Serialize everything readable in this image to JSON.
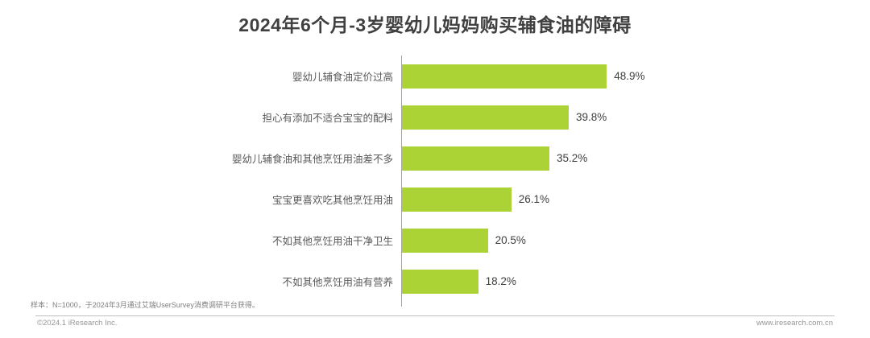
{
  "title": "2024年6个月-3岁婴幼儿妈妈购买辅食油的障碍",
  "chart_data": {
    "type": "bar",
    "orientation": "horizontal",
    "title": "2024年6个月-3岁婴幼儿妈妈购买辅食油的障碍",
    "categories": [
      "婴幼儿辅食油定价过高",
      "担心有添加不适合宝宝的配料",
      "婴幼儿辅食油和其他烹饪用油差不多",
      "宝宝更喜欢吃其他烹饪用油",
      "不如其他烹饪用油干净卫生",
      "不如其他烹饪用油有营养"
    ],
    "values": [
      48.9,
      39.8,
      35.2,
      26.1,
      20.5,
      18.2
    ],
    "value_labels": [
      "48.9%",
      "39.8%",
      "35.2%",
      "26.1%",
      "20.5%",
      "18.2%"
    ],
    "xlabel": "",
    "ylabel": "",
    "xlim": [
      0,
      55
    ],
    "grid": false,
    "legend": "none",
    "bar_color": "#acd336",
    "axis_color": "#a6a6a6"
  },
  "footnote": "样本：N=1000，于2024年3月通过艾瑞UserSurvey消费调研平台获得。",
  "footer": {
    "copyright": "©2024.1 iResearch Inc.",
    "website": "www.iresearch.com.cn"
  }
}
